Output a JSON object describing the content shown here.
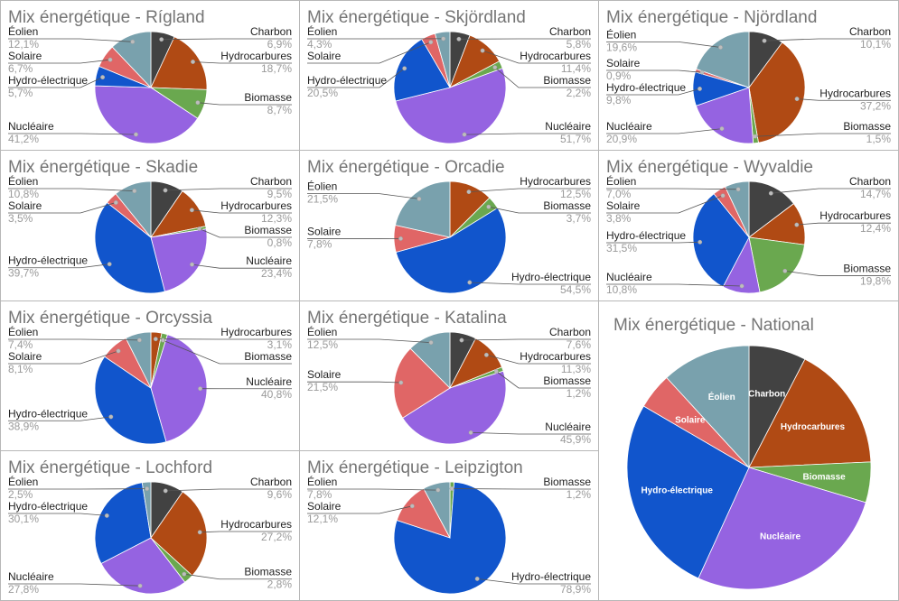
{
  "colors": {
    "charbon": "#424242",
    "hydrocarbures": "#b04a14",
    "biomasse": "#6aa84f",
    "nucleaire": "#9563e1",
    "hydro": "#1155cc",
    "solaire": "#e06666",
    "eolien": "#79a1ad"
  },
  "chart_data": [
    {
      "type": "pie",
      "title": "Mix énergétique - Rígland",
      "slices": [
        {
          "key": "charbon",
          "label": "Charbon",
          "value": 6.9,
          "display": "6,9%"
        },
        {
          "key": "hydrocarbures",
          "label": "Hydrocarbures",
          "value": 18.7,
          "display": "18,7%"
        },
        {
          "key": "biomasse",
          "label": "Biomasse",
          "value": 8.7,
          "display": "8,7%"
        },
        {
          "key": "nucleaire",
          "label": "Nucléaire",
          "value": 41.2,
          "display": "41,2%"
        },
        {
          "key": "hydro",
          "label": "Hydro-électrique",
          "value": 5.7,
          "display": "5,7%"
        },
        {
          "key": "solaire",
          "label": "Solaire",
          "value": 6.7,
          "display": "6,7%"
        },
        {
          "key": "eolien",
          "label": "Éolien",
          "value": 12.1,
          "display": "12,1%"
        }
      ]
    },
    {
      "type": "pie",
      "title": "Mix énergétique - Skjördland",
      "slices": [
        {
          "key": "charbon",
          "label": "Charbon",
          "value": 5.8,
          "display": "5,8%"
        },
        {
          "key": "hydrocarbures",
          "label": "Hydrocarbures",
          "value": 11.4,
          "display": "11,4%"
        },
        {
          "key": "biomasse",
          "label": "Biomasse",
          "value": 2.2,
          "display": "2,2%"
        },
        {
          "key": "nucleaire",
          "label": "Nucléaire",
          "value": 51.7,
          "display": "51,7%"
        },
        {
          "key": "hydro",
          "label": "Hydro-électrique",
          "value": 20.5,
          "display": "20,5%"
        },
        {
          "key": "solaire",
          "label": "Solaire",
          "value": 4.1,
          "display": ""
        },
        {
          "key": "eolien",
          "label": "Éolien",
          "value": 4.3,
          "display": "4,3%"
        }
      ]
    },
    {
      "type": "pie",
      "title": "Mix énergétique - Njördland",
      "slices": [
        {
          "key": "charbon",
          "label": "Charbon",
          "value": 10.1,
          "display": "10,1%"
        },
        {
          "key": "hydrocarbures",
          "label": "Hydrocarbures",
          "value": 37.2,
          "display": "37,2%"
        },
        {
          "key": "biomasse",
          "label": "Biomasse",
          "value": 1.5,
          "display": "1,5%"
        },
        {
          "key": "nucleaire",
          "label": "Nucléaire",
          "value": 20.9,
          "display": "20,9%"
        },
        {
          "key": "hydro",
          "label": "Hydro-électrique",
          "value": 9.8,
          "display": "9,8%"
        },
        {
          "key": "solaire",
          "label": "Solaire",
          "value": 0.9,
          "display": "0,9%"
        },
        {
          "key": "eolien",
          "label": "Éolien",
          "value": 19.6,
          "display": "19,6%"
        }
      ]
    },
    {
      "type": "pie",
      "title": "Mix énergétique - Skadie",
      "slices": [
        {
          "key": "charbon",
          "label": "Charbon",
          "value": 9.5,
          "display": "9,5%"
        },
        {
          "key": "hydrocarbures",
          "label": "Hydrocarbures",
          "value": 12.3,
          "display": "12,3%"
        },
        {
          "key": "biomasse",
          "label": "Biomasse",
          "value": 0.8,
          "display": "0,8%"
        },
        {
          "key": "nucleaire",
          "label": "Nucléaire",
          "value": 23.4,
          "display": "23,4%"
        },
        {
          "key": "hydro",
          "label": "Hydro-électrique",
          "value": 39.7,
          "display": "39,7%"
        },
        {
          "key": "solaire",
          "label": "Solaire",
          "value": 3.5,
          "display": "3,5%"
        },
        {
          "key": "eolien",
          "label": "Éolien",
          "value": 10.8,
          "display": "10,8%"
        }
      ]
    },
    {
      "type": "pie",
      "title": "Mix énergétique - Orcadie",
      "slices": [
        {
          "key": "hydrocarbures",
          "label": "Hydrocarbures",
          "value": 12.5,
          "display": "12,5%"
        },
        {
          "key": "biomasse",
          "label": "Biomasse",
          "value": 3.7,
          "display": "3,7%"
        },
        {
          "key": "hydro",
          "label": "Hydro-électrique",
          "value": 54.5,
          "display": "54,5%"
        },
        {
          "key": "solaire",
          "label": "Solaire",
          "value": 7.8,
          "display": "7,8%"
        },
        {
          "key": "eolien",
          "label": "Éolien",
          "value": 21.5,
          "display": "21,5%"
        }
      ]
    },
    {
      "type": "pie",
      "title": "Mix énergétique - Wyvaldie",
      "slices": [
        {
          "key": "charbon",
          "label": "Charbon",
          "value": 14.7,
          "display": "14,7%"
        },
        {
          "key": "hydrocarbures",
          "label": "Hydrocarbures",
          "value": 12.4,
          "display": "12,4%"
        },
        {
          "key": "biomasse",
          "label": "Biomasse",
          "value": 19.8,
          "display": "19,8%"
        },
        {
          "key": "nucleaire",
          "label": "Nucléaire",
          "value": 10.8,
          "display": "10,8%"
        },
        {
          "key": "hydro",
          "label": "Hydro-électrique",
          "value": 31.5,
          "display": "31,5%"
        },
        {
          "key": "solaire",
          "label": "Solaire",
          "value": 3.8,
          "display": "3,8%"
        },
        {
          "key": "eolien",
          "label": "Éolien",
          "value": 7.0,
          "display": "7,0%"
        }
      ]
    },
    {
      "type": "pie",
      "title": "Mix énergétique - Orcyssia",
      "slices": [
        {
          "key": "hydrocarbures",
          "label": "Hydrocarbures",
          "value": 3.1,
          "display": "3,1%"
        },
        {
          "key": "biomasse",
          "label": "Biomasse",
          "value": 1.7,
          "display": ""
        },
        {
          "key": "nucleaire",
          "label": "Nucléaire",
          "value": 40.8,
          "display": "40,8%"
        },
        {
          "key": "hydro",
          "label": "Hydro-électrique",
          "value": 38.9,
          "display": "38,9%"
        },
        {
          "key": "solaire",
          "label": "Solaire",
          "value": 8.1,
          "display": "8,1%"
        },
        {
          "key": "eolien",
          "label": "Éolien",
          "value": 7.4,
          "display": "7,4%"
        }
      ]
    },
    {
      "type": "pie",
      "title": "Mix énergétique - Katalina",
      "slices": [
        {
          "key": "charbon",
          "label": "Charbon",
          "value": 7.6,
          "display": "7,6%"
        },
        {
          "key": "hydrocarbures",
          "label": "Hydrocarbures",
          "value": 11.3,
          "display": "11,3%"
        },
        {
          "key": "biomasse",
          "label": "Biomasse",
          "value": 1.2,
          "display": "1,2%"
        },
        {
          "key": "nucleaire",
          "label": "Nucléaire",
          "value": 45.9,
          "display": "45,9%"
        },
        {
          "key": "solaire",
          "label": "Solaire",
          "value": 21.5,
          "display": "21,5%"
        },
        {
          "key": "eolien",
          "label": "Éolien",
          "value": 12.5,
          "display": "12,5%"
        }
      ]
    },
    {
      "type": "pie",
      "title": "Mix énergétique - Lochford",
      "slices": [
        {
          "key": "charbon",
          "label": "Charbon",
          "value": 9.6,
          "display": "9,6%"
        },
        {
          "key": "hydrocarbures",
          "label": "Hydrocarbures",
          "value": 27.2,
          "display": "27,2%"
        },
        {
          "key": "biomasse",
          "label": "Biomasse",
          "value": 2.8,
          "display": "2,8%"
        },
        {
          "key": "nucleaire",
          "label": "Nucléaire",
          "value": 27.8,
          "display": "27,8%"
        },
        {
          "key": "hydro",
          "label": "Hydro-électrique",
          "value": 30.1,
          "display": "30,1%"
        },
        {
          "key": "eolien",
          "label": "Éolien",
          "value": 2.5,
          "display": "2,5%"
        }
      ]
    },
    {
      "type": "pie",
      "title": "Mix énergétique - Leipzigton",
      "slices": [
        {
          "key": "biomasse",
          "label": "Biomasse",
          "value": 1.2,
          "display": "1,2%"
        },
        {
          "key": "hydro",
          "label": "Hydro-électrique",
          "value": 78.9,
          "display": "78,9%"
        },
        {
          "key": "solaire",
          "label": "Solaire",
          "value": 12.1,
          "display": "12,1%"
        },
        {
          "key": "eolien",
          "label": "Éolien",
          "value": 7.8,
          "display": "7,8%"
        }
      ]
    },
    {
      "type": "pie",
      "title": "Mix énergétique - National",
      "slices": [
        {
          "key": "charbon",
          "label": "Charbon",
          "value": 7.9,
          "display": ""
        },
        {
          "key": "hydrocarbures",
          "label": "Hydrocarbures",
          "value": 17.4,
          "display": ""
        },
        {
          "key": "biomasse",
          "label": "Biomasse",
          "value": 5.6,
          "display": ""
        },
        {
          "key": "nucleaire",
          "label": "Nucléaire",
          "value": 28.3,
          "display": ""
        },
        {
          "key": "hydro",
          "label": "Hydro-électrique",
          "value": 27.7,
          "display": ""
        },
        {
          "key": "solaire",
          "label": "Solaire",
          "value": 5.0,
          "display": ""
        },
        {
          "key": "eolien",
          "label": "Éolien",
          "value": 12.3,
          "display": ""
        }
      ]
    }
  ]
}
